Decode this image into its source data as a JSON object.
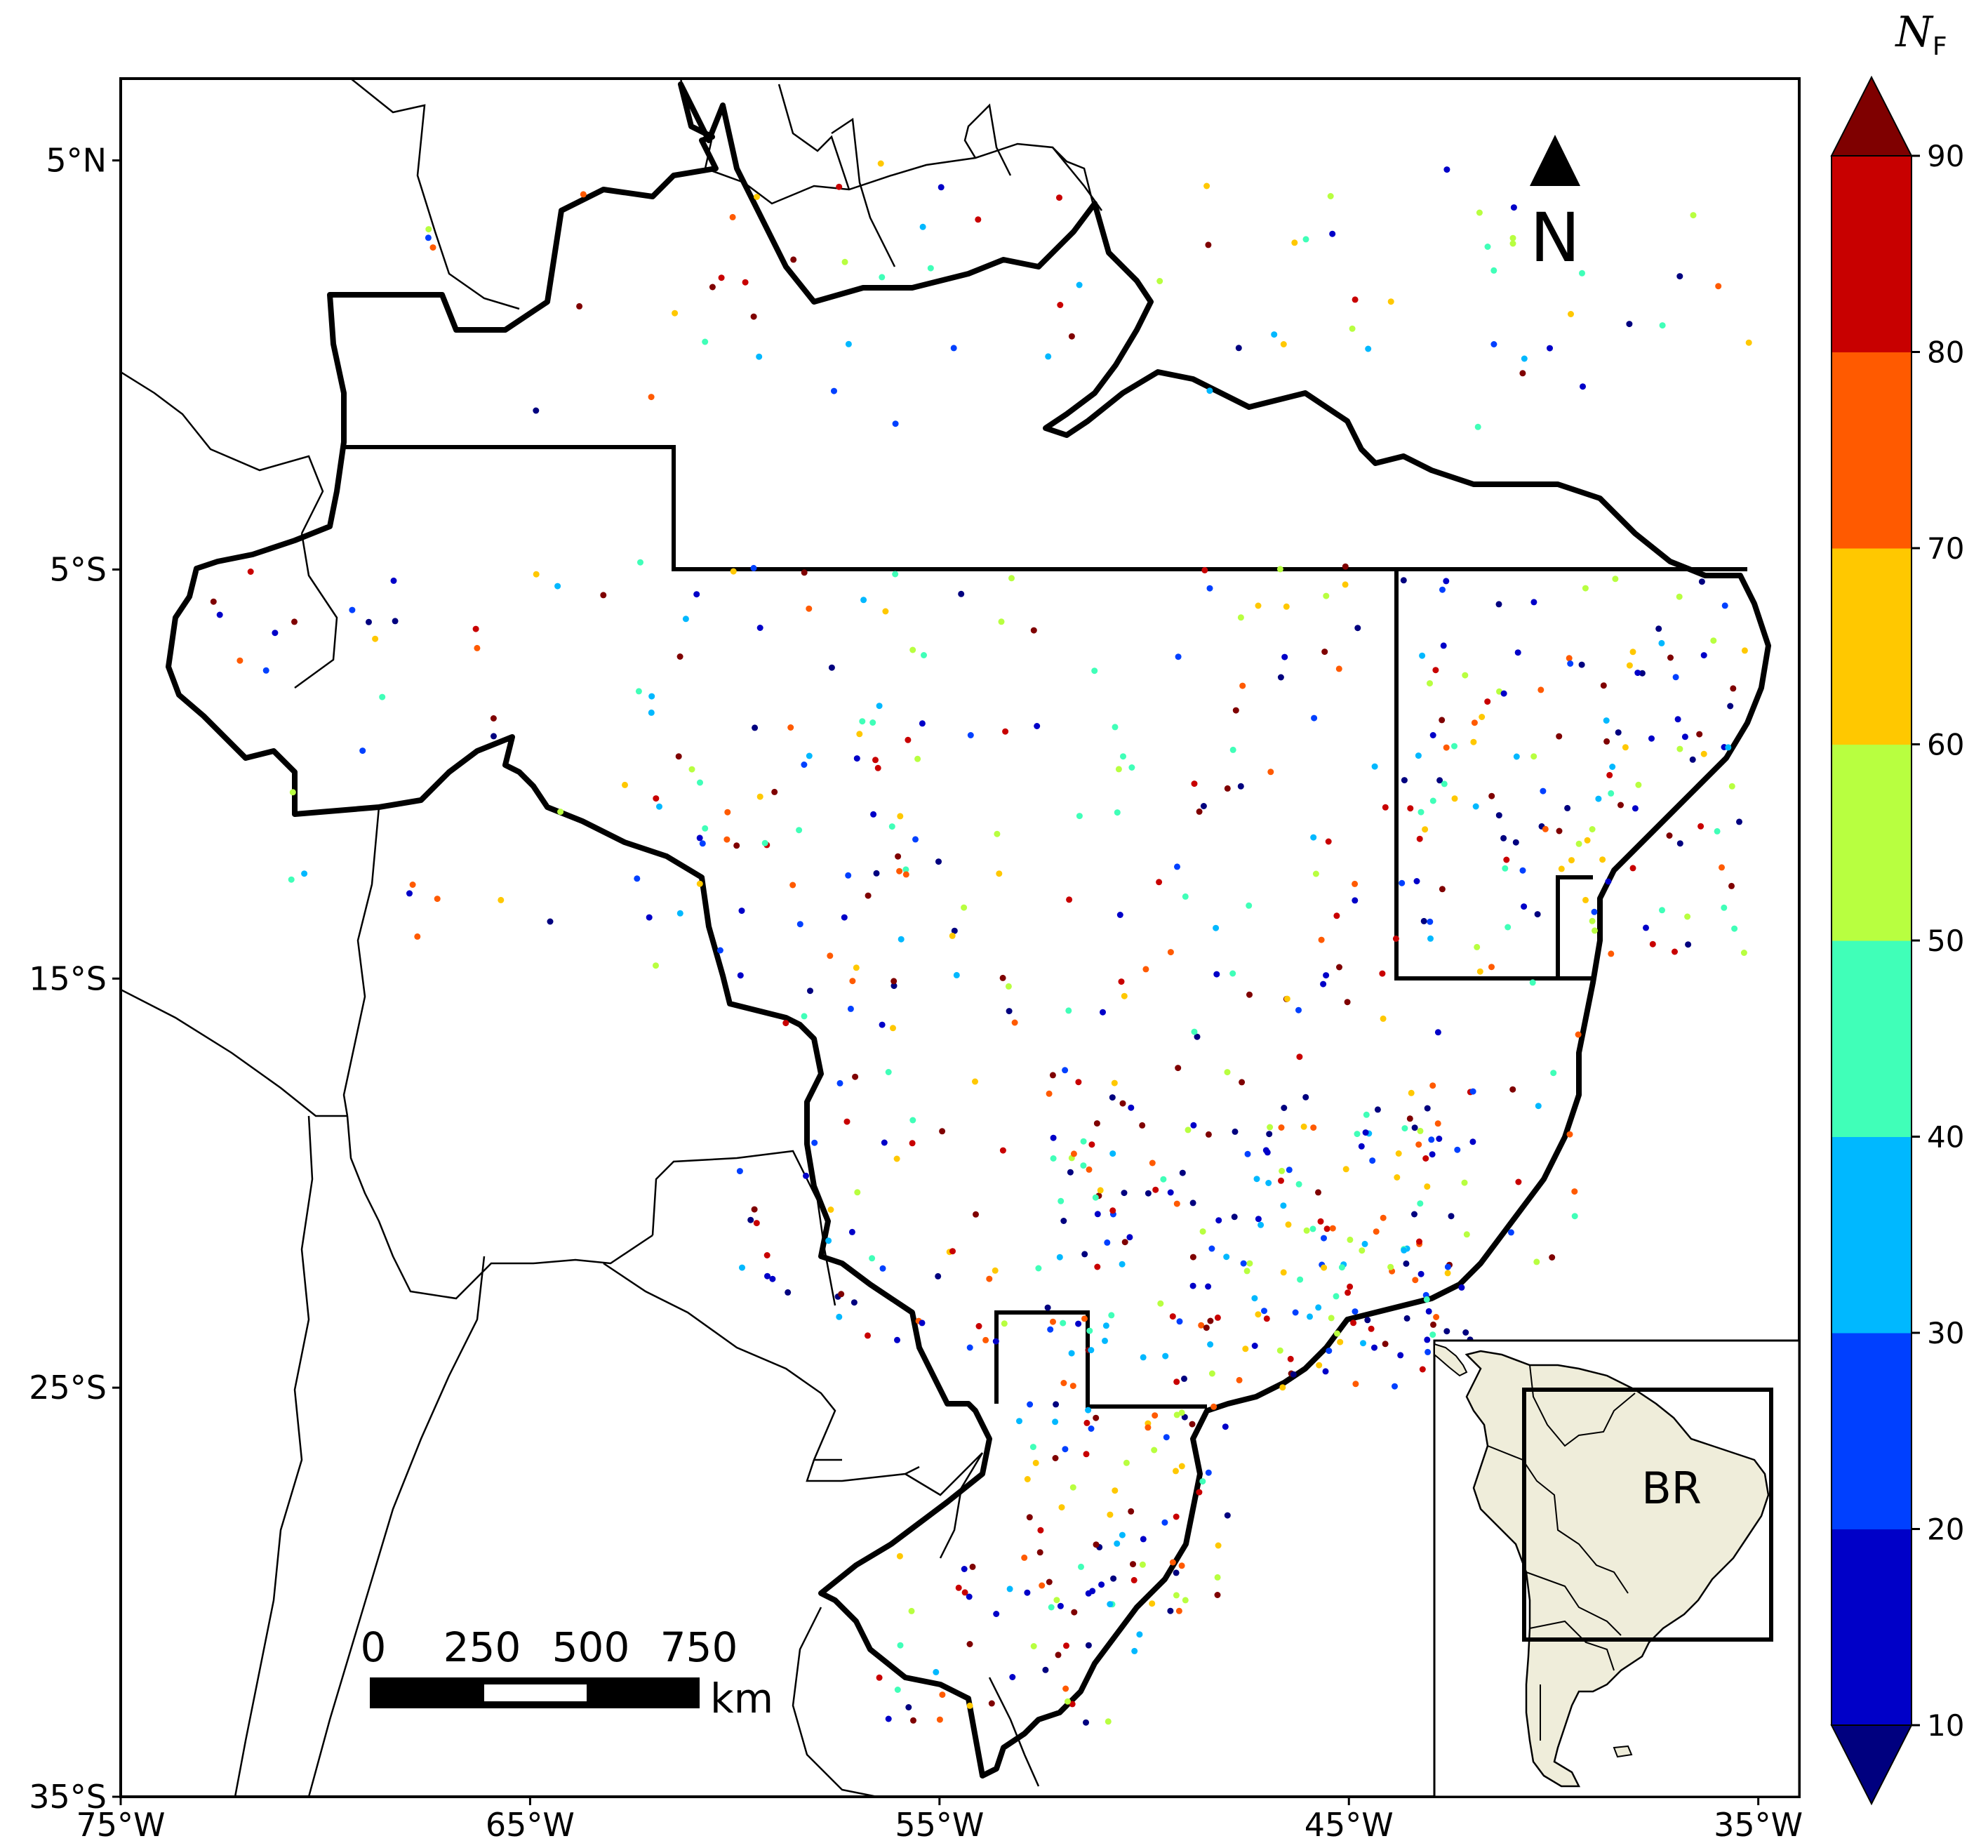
{
  "map": {
    "extent": {
      "lon_min": -75,
      "lon_max": -34,
      "lat_min": -35,
      "lat_max": 7
    },
    "lon_ticks": [
      {
        "value": -75,
        "label": "75°W"
      },
      {
        "value": -65,
        "label": "65°W"
      },
      {
        "value": -55,
        "label": "55°W"
      },
      {
        "value": -45,
        "label": "45°W"
      },
      {
        "value": -35,
        "label": "35°W"
      }
    ],
    "lat_ticks": [
      {
        "value": 5,
        "label": "5°N"
      },
      {
        "value": -5,
        "label": "5°S"
      },
      {
        "value": -15,
        "label": "15°S"
      },
      {
        "value": -25,
        "label": "25°S"
      },
      {
        "value": -35,
        "label": "35°S"
      }
    ],
    "north_arrow_label": "N",
    "scale_bar": {
      "labels": [
        "0",
        "250",
        "500",
        "750"
      ],
      "unit": "km"
    },
    "inset_label": "BR",
    "inset_land_color": "#efedda"
  },
  "colorbar": {
    "title_main": "N",
    "title_sub": "F",
    "ticks": [
      "10",
      "20",
      "30",
      "40",
      "50",
      "60",
      "70",
      "80",
      "90"
    ],
    "colors": [
      "#00007f",
      "#0000c8",
      "#0040ff",
      "#00b8ff",
      "#40ffb8",
      "#b8ff40",
      "#ffc800",
      "#ff5a00",
      "#c80000",
      "#7f0000"
    ]
  }
}
